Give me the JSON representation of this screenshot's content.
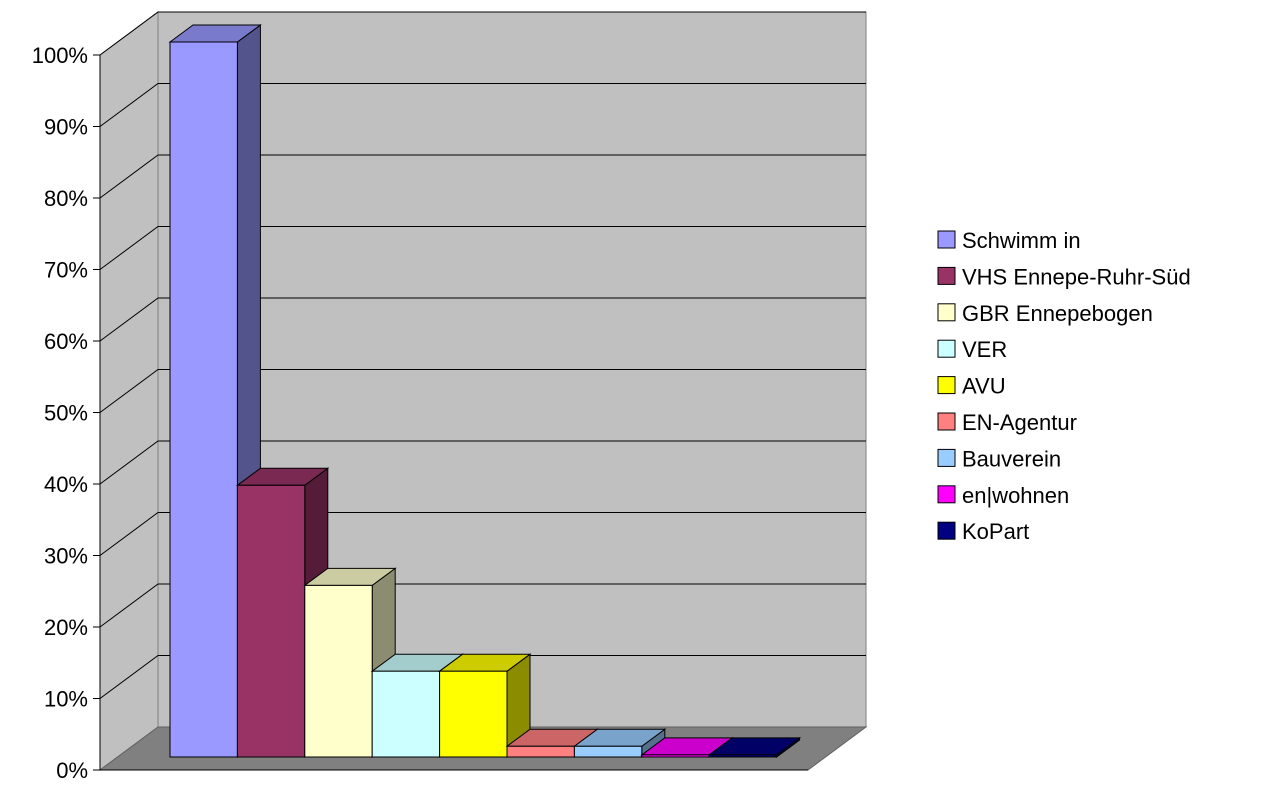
{
  "chart_data": {
    "type": "bar",
    "style": "3d-column",
    "title": "",
    "xlabel": "",
    "ylabel": "",
    "ylim": [
      0,
      100
    ],
    "y_ticks": [
      "0%",
      "10%",
      "20%",
      "30%",
      "40%",
      "50%",
      "60%",
      "70%",
      "80%",
      "90%",
      "100%"
    ],
    "grid": true,
    "legend_position": "right",
    "categories": [
      "Schwimm in",
      "VHS Ennepe-Ruhr-Süd",
      "GBR Ennepebogen",
      "VER",
      "AVU",
      "EN-Agentur",
      "Bauverein",
      "en|wohnen",
      "KoPart"
    ],
    "values": [
      100,
      38,
      24,
      12,
      12,
      1.5,
      1.5,
      0.3,
      0.3
    ],
    "colors": [
      "#9999ff",
      "#993366",
      "#ffffcc",
      "#ccffff",
      "#ffff00",
      "#ff8080",
      "#99ccff",
      "#ff00ff",
      "#000080"
    ],
    "background_color": "#c0c0c0",
    "floor_color": "#808080"
  }
}
